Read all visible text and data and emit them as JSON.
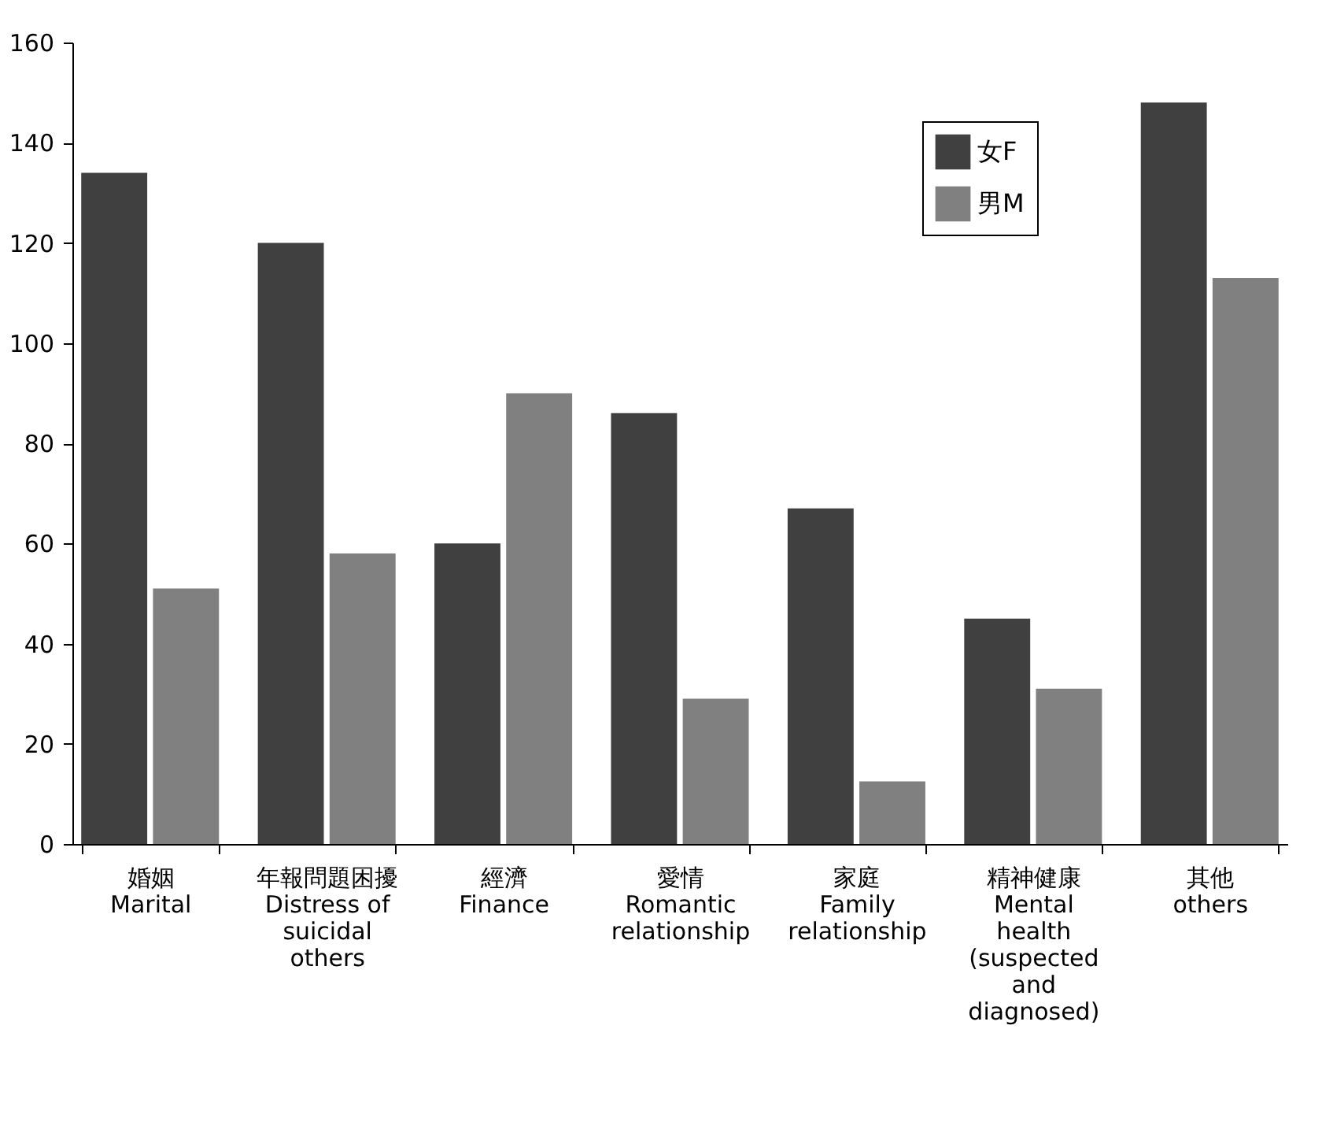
{
  "chart_data": {
    "type": "bar",
    "categories": [
      "婚姻\nMarital",
      "年報問題困擾\nDistress of\nsuicidal\nothers",
      "經濟\nFinance",
      "愛情\nRomantic\nrelationship",
      "家庭\nFamily\nrelationship",
      "精神健康\nMental\nhealth\n(suspected\nand\ndiagnosed)",
      "其他\nothers"
    ],
    "series": [
      {
        "name": "女F",
        "color": "#404040",
        "values": [
          134,
          120,
          60,
          86,
          67,
          45,
          148
        ]
      },
      {
        "name": "男M",
        "color": "#808080",
        "values": [
          51,
          58,
          90,
          29,
          12.5,
          31,
          113
        ]
      }
    ],
    "ylim": [
      0,
      160
    ],
    "yticks": [
      0,
      20,
      40,
      60,
      80,
      100,
      120,
      140,
      160
    ],
    "grid": false,
    "legend": "top right"
  }
}
